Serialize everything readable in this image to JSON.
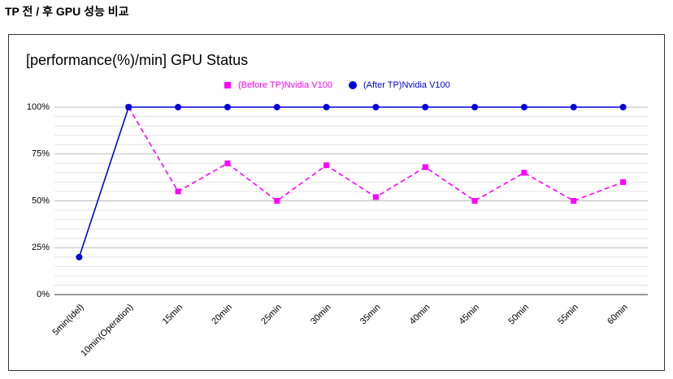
{
  "header": {
    "title": "TP 전 / 후 GPU 성능 비교"
  },
  "chart_data": {
    "type": "line",
    "title": "[performance(%)/min] GPU Status",
    "categories": [
      "5min(Idel)",
      "10min(Operation)",
      "15min",
      "20min",
      "25min",
      "30min",
      "35min",
      "40min",
      "45min",
      "50min",
      "55min",
      "60min"
    ],
    "series": [
      {
        "name": "(Before TP)Nvidia V100",
        "color": "#ff00ff",
        "marker": "square",
        "dashed": true,
        "values": [
          null,
          100,
          55,
          70,
          50,
          69,
          52,
          68,
          50,
          65,
          50,
          60
        ]
      },
      {
        "name": "(After TP)Nvidia V100",
        "color": "#0000dd",
        "marker": "circle",
        "dashed": false,
        "values": [
          20,
          100,
          100,
          100,
          100,
          100,
          100,
          100,
          100,
          100,
          100,
          100
        ]
      }
    ],
    "ylim": [
      0,
      100
    ],
    "yticks": [
      {
        "value": 0,
        "label": "0%"
      },
      {
        "value": 25,
        "label": "25%"
      },
      {
        "value": 50,
        "label": "50%"
      },
      {
        "value": 75,
        "label": "75%"
      },
      {
        "value": 100,
        "label": "100%"
      }
    ],
    "yminor": [
      5,
      10,
      15,
      20,
      30,
      35,
      40,
      45,
      55,
      60,
      65,
      70,
      80,
      85,
      90,
      95
    ],
    "grid": true,
    "legend": "top"
  }
}
